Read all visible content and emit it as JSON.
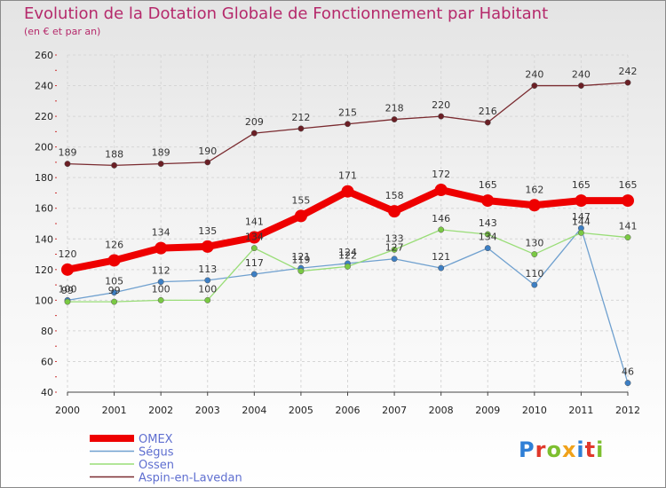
{
  "title": "Evolution de la Dotation Globale de Fonctionnement par Habitant",
  "subtitle": "(en € et par an)",
  "logo": {
    "text": "Proxiti",
    "colors": [
      "#2f7fd6",
      "#e0382b",
      "#7dbf2f",
      "#f0a21a",
      "#2f7fd6",
      "#e0382b",
      "#7dbf2f"
    ]
  },
  "chart_data": {
    "type": "line",
    "title": "Evolution de la Dotation Globale de Fonctionnement par Habitant",
    "subtitle": "(en € et par an)",
    "x": [
      "2000",
      "2001",
      "2002",
      "2003",
      "2004",
      "2005",
      "2006",
      "2007",
      "2008",
      "2009",
      "2010",
      "2011",
      "2012"
    ],
    "ylim": [
      40,
      260
    ],
    "yticks": [
      40,
      60,
      80,
      100,
      120,
      140,
      160,
      180,
      200,
      220,
      240,
      260
    ],
    "grid": true,
    "legend_position": "bottom-left",
    "series": [
      {
        "name": "OMEX",
        "color": "#ee0000",
        "width": 8,
        "marker": 7,
        "values": [
          120,
          126,
          134,
          135,
          141,
          155,
          171,
          158,
          172,
          165,
          162,
          165,
          165
        ]
      },
      {
        "name": "Ségus",
        "color": "#6fa0cf",
        "marker_color": "#3d7fc4",
        "width": 1.3,
        "marker": 3.2,
        "values": [
          100,
          105,
          112,
          113,
          117,
          121,
          124,
          127,
          121,
          134,
          110,
          147,
          46
        ]
      },
      {
        "name": "Ossen",
        "color": "#99dd77",
        "marker_color": "#7ac943",
        "width": 1.3,
        "marker": 3.2,
        "values": [
          99,
          99,
          100,
          100,
          134,
          119,
          122,
          133,
          146,
          143,
          130,
          144,
          141
        ]
      },
      {
        "name": "Aspin-en-Lavedan",
        "color": "#7a2b30",
        "marker_color": "#6b1f25",
        "width": 1.3,
        "marker": 3.2,
        "values": [
          189,
          188,
          189,
          190,
          209,
          212,
          215,
          218,
          220,
          216,
          240,
          240,
          242
        ]
      }
    ]
  }
}
